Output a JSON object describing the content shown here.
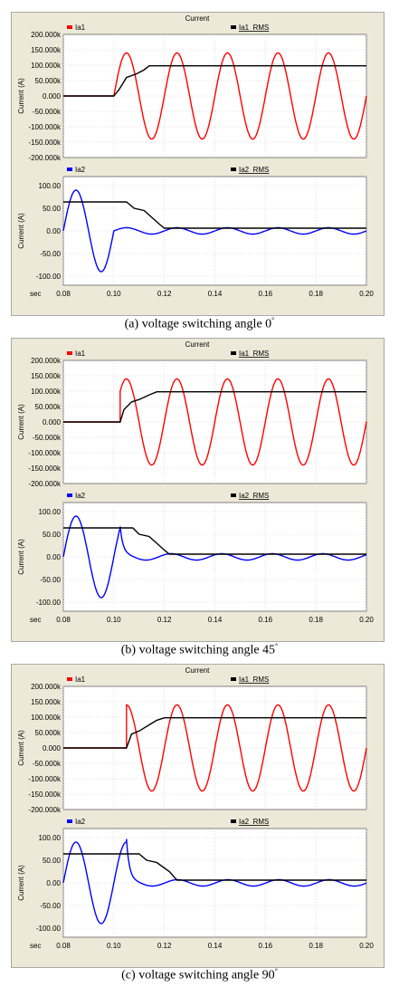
{
  "window_title": "Current",
  "x_unit": "sec",
  "x_ticks": [
    "0.08",
    "0.10",
    "0.12",
    "0.14",
    "0.16",
    "0.18",
    "0.20"
  ],
  "top_ylabel": "Current (A)",
  "bottom_ylabel": "Current (A)",
  "top_ticks": [
    "200.000k",
    "150.000k",
    "100.000k",
    "50.000k",
    "0.000",
    "-50.000k",
    "-100.000k",
    "-150.000k",
    "-200.000k"
  ],
  "bottom_ticks": [
    "100.00",
    "50.00",
    "0.00",
    "-50.00",
    "-100.00"
  ],
  "legend": {
    "ia1": "Ia1",
    "ia1_rms": "Ia1_RMS",
    "ia2": "Ia2",
    "ia2_rms": "Ia2_RMS"
  },
  "colors": {
    "ia1": "#ff0000",
    "ia2": "#0000ff",
    "rms": "#000000",
    "plot_bg": "#ffffff",
    "panel_bg": "#ece9d8",
    "grid": "#c8c8c8"
  },
  "captions": [
    {
      "prefix": "(a)",
      "text": "voltage  switching  angle  0",
      "degree": "°"
    },
    {
      "prefix": "(b)",
      "text": "voltage  switching  angle  45",
      "degree": "°"
    },
    {
      "prefix": "(c)",
      "text": "voltage  switching  angle  90",
      "degree": "°"
    }
  ],
  "chart_data": [
    {
      "type": "line",
      "title": "Current",
      "subplots": [
        {
          "ylabel": "Current (A)",
          "xlim": [
            0.08,
            0.2
          ],
          "ylim": [
            -200000,
            200000
          ],
          "grid": true,
          "series": [
            {
              "name": "Ia1",
              "switch_time": 0.1,
              "amplitude": 140000,
              "frequency_hz": 50,
              "pre_switch_value": 0
            },
            {
              "name": "Ia1_RMS",
              "points": [
                [
                  0.08,
                  0
                ],
                [
                  0.1,
                  0
                ],
                [
                  0.102,
                  20000
                ],
                [
                  0.105,
                  60000
                ],
                [
                  0.109,
                  72000
                ],
                [
                  0.112,
                  85000
                ],
                [
                  0.114,
                  98000
                ],
                [
                  0.2,
                  98000
                ]
              ]
            }
          ]
        },
        {
          "ylabel": "Current (A)",
          "xlim": [
            0.08,
            0.2
          ],
          "ylim": [
            -120,
            120
          ],
          "grid": true,
          "series": [
            {
              "name": "Ia2",
              "pre_switch_amplitude": 90,
              "post_switch_amplitude": 7,
              "frequency_hz": 50,
              "switch_time": 0.1
            },
            {
              "name": "Ia2_RMS",
              "points": [
                [
                  0.08,
                  64
                ],
                [
                  0.105,
                  64
                ],
                [
                  0.108,
                  50
                ],
                [
                  0.112,
                  45
                ],
                [
                  0.118,
                  15
                ],
                [
                  0.12,
                  6
                ],
                [
                  0.2,
                  6
                ]
              ]
            }
          ]
        }
      ]
    },
    {
      "type": "line",
      "title": "Current",
      "subplots": [
        {
          "ylabel": "Current (A)",
          "xlim": [
            0.08,
            0.2
          ],
          "ylim": [
            -200000,
            200000
          ],
          "grid": true,
          "series": [
            {
              "name": "Ia1",
              "switch_time": 0.1025,
              "amplitude": 140000,
              "frequency_hz": 50,
              "pre_switch_value": 0
            },
            {
              "name": "Ia1_RMS",
              "points": [
                [
                  0.08,
                  0
                ],
                [
                  0.1025,
                  0
                ],
                [
                  0.104,
                  40000
                ],
                [
                  0.107,
                  65000
                ],
                [
                  0.11,
                  73000
                ],
                [
                  0.114,
                  88000
                ],
                [
                  0.117,
                  98000
                ],
                [
                  0.2,
                  98000
                ]
              ]
            }
          ]
        },
        {
          "ylabel": "Current (A)",
          "xlim": [
            0.08,
            0.2
          ],
          "ylim": [
            -120,
            120
          ],
          "grid": true,
          "series": [
            {
              "name": "Ia2",
              "pre_switch_amplitude": 90,
              "post_switch_amplitude": 7,
              "frequency_hz": 50,
              "switch_time": 0.1025
            },
            {
              "name": "Ia2_RMS",
              "points": [
                [
                  0.08,
                  64
                ],
                [
                  0.1075,
                  64
                ],
                [
                  0.11,
                  50
                ],
                [
                  0.114,
                  45
                ],
                [
                  0.12,
                  15
                ],
                [
                  0.122,
                  6
                ],
                [
                  0.2,
                  6
                ]
              ]
            }
          ]
        }
      ]
    },
    {
      "type": "line",
      "title": "Current",
      "subplots": [
        {
          "ylabel": "Current (A)",
          "xlim": [
            0.08,
            0.2
          ],
          "ylim": [
            -200000,
            200000
          ],
          "grid": true,
          "series": [
            {
              "name": "Ia1",
              "switch_time": 0.105,
              "amplitude": 140000,
              "frequency_hz": 50,
              "pre_switch_value": 0
            },
            {
              "name": "Ia1_RMS",
              "points": [
                [
                  0.08,
                  0
                ],
                [
                  0.105,
                  0
                ],
                [
                  0.107,
                  45000
                ],
                [
                  0.11,
                  55000
                ],
                [
                  0.114,
                  75000
                ],
                [
                  0.117,
                  90000
                ],
                [
                  0.12,
                  98000
                ],
                [
                  0.2,
                  98000
                ]
              ]
            }
          ]
        },
        {
          "ylabel": "Current (A)",
          "xlim": [
            0.08,
            0.2
          ],
          "ylim": [
            -120,
            120
          ],
          "grid": true,
          "series": [
            {
              "name": "Ia2",
              "pre_switch_amplitude": 90,
              "post_switch_amplitude": 7,
              "frequency_hz": 50,
              "switch_time": 0.105
            },
            {
              "name": "Ia2_RMS",
              "points": [
                [
                  0.08,
                  64
                ],
                [
                  0.11,
                  64
                ],
                [
                  0.113,
                  50
                ],
                [
                  0.117,
                  45
                ],
                [
                  0.122,
                  25
                ],
                [
                  0.125,
                  6
                ],
                [
                  0.2,
                  6
                ]
              ]
            }
          ]
        }
      ]
    }
  ]
}
